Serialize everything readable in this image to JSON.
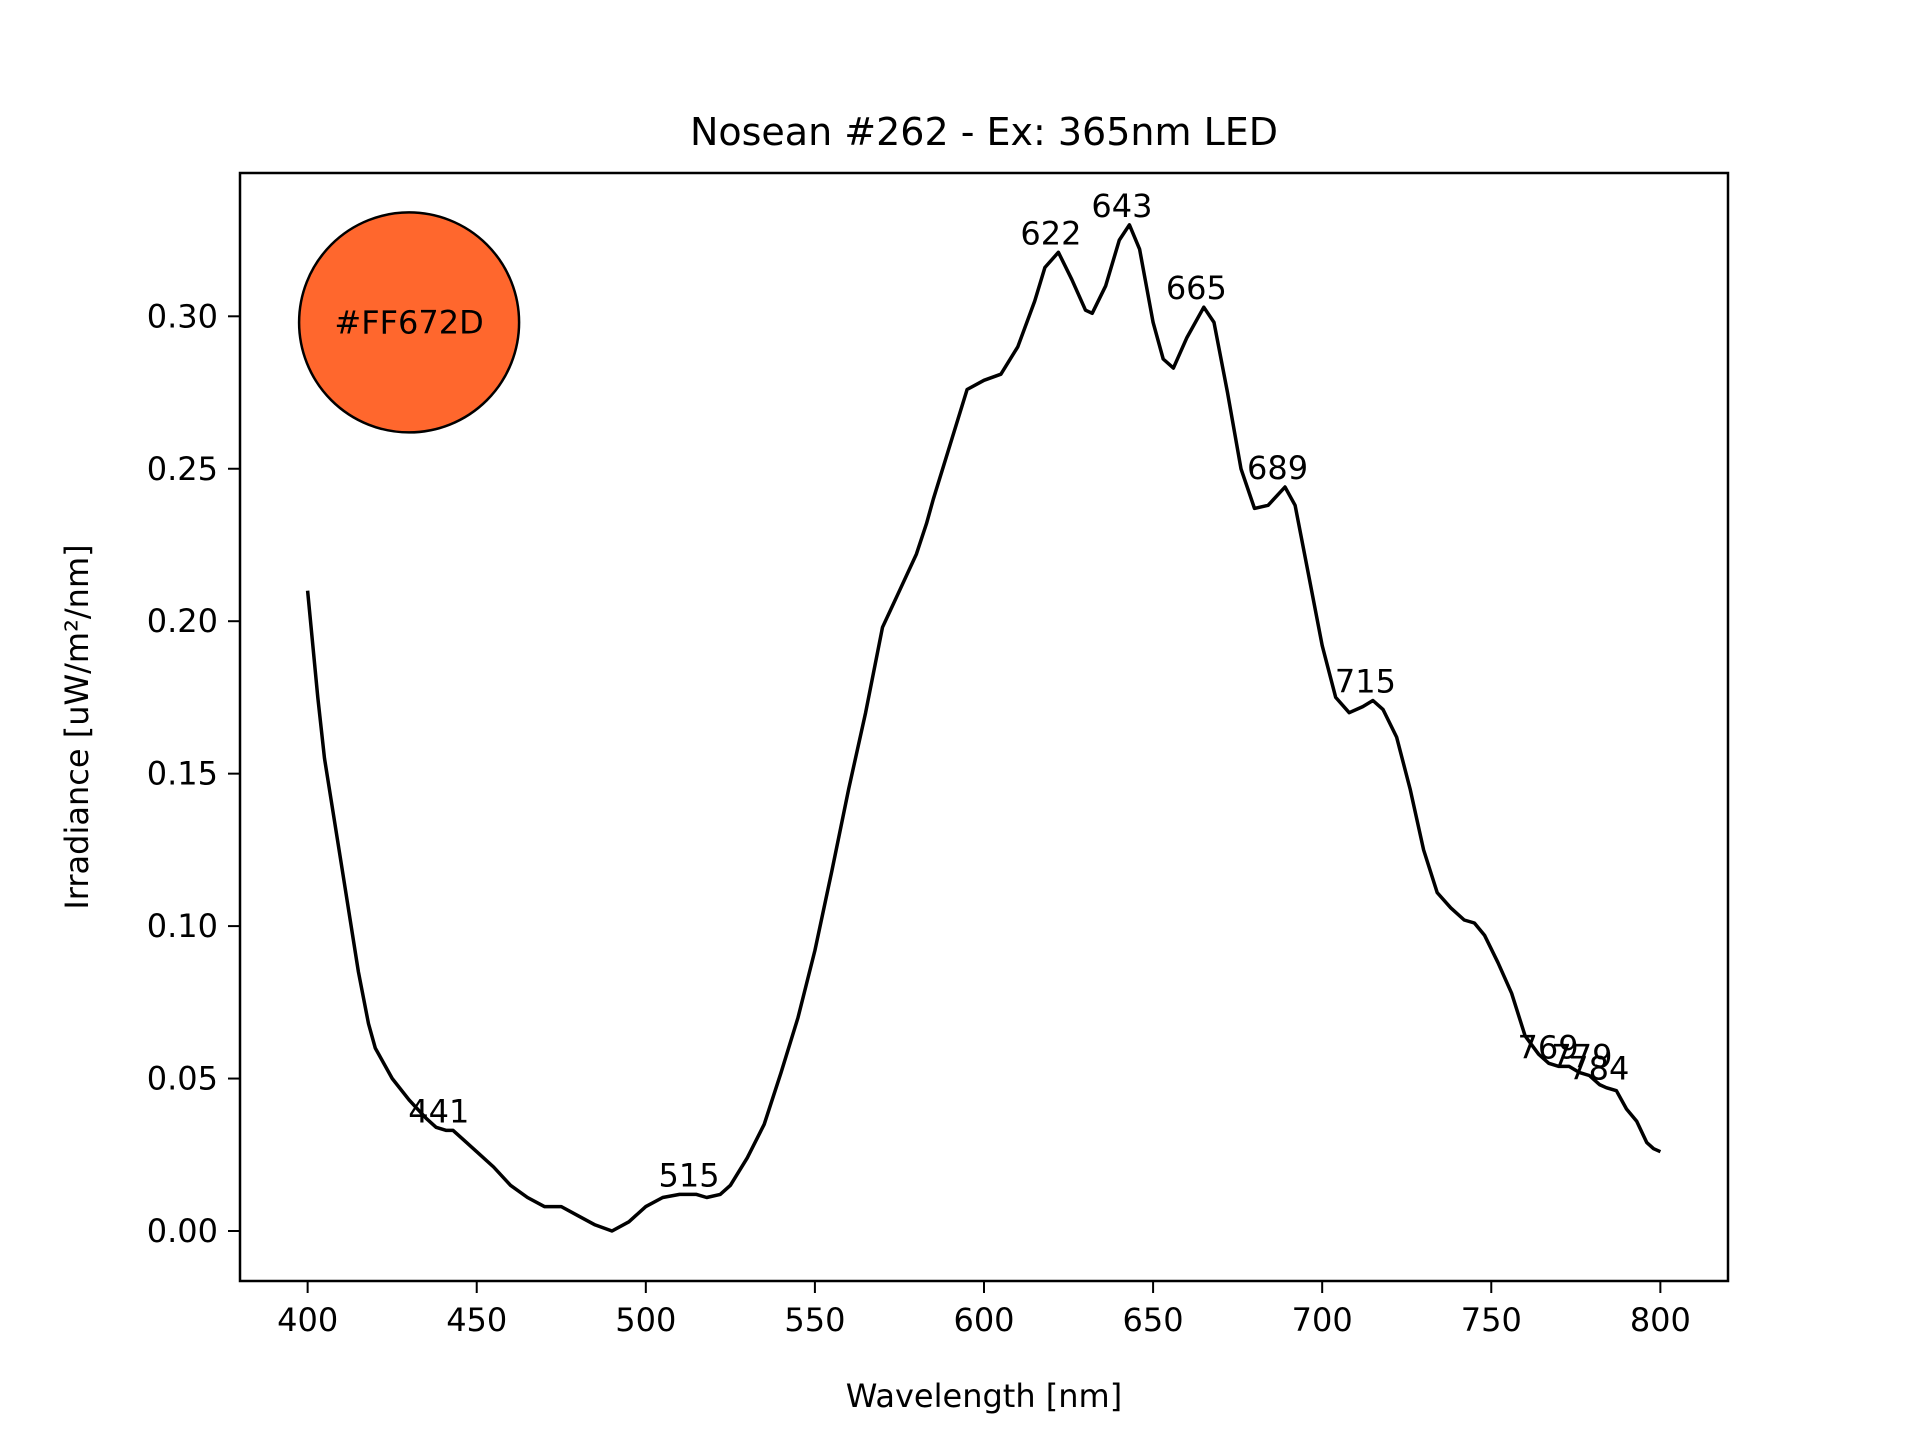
{
  "chart_data": {
    "type": "line",
    "title": "Nosean #262 - Ex: 365nm LED",
    "xlabel": "Wavelength [nm]",
    "ylabel": "Irradiance [uW/m²/nm]",
    "xlim": [
      380,
      820
    ],
    "ylim": [
      -0.0164,
      0.347
    ],
    "grid": false,
    "legend": "none",
    "x_ticks": [
      400,
      450,
      500,
      550,
      600,
      650,
      700,
      750,
      800
    ],
    "x_tick_labels": [
      "400",
      "450",
      "500",
      "550",
      "600",
      "650",
      "700",
      "750",
      "800"
    ],
    "y_ticks": [
      0.0,
      0.05,
      0.1,
      0.15,
      0.2,
      0.25,
      0.3
    ],
    "y_tick_labels": [
      "0.00",
      "0.05",
      "0.10",
      "0.15",
      "0.20",
      "0.25",
      "0.30"
    ],
    "series": [
      {
        "name": "Nosean #262",
        "color": "#000000",
        "x": [
          400,
          403,
          405,
          410,
          415,
          418,
          420,
          425,
          430,
          435,
          438,
          441,
          443,
          447,
          450,
          455,
          460,
          465,
          470,
          475,
          480,
          485,
          490,
          495,
          500,
          505,
          510,
          515,
          518,
          522,
          525,
          530,
          535,
          540,
          545,
          550,
          555,
          560,
          565,
          570,
          575,
          580,
          583,
          585,
          590,
          595,
          600,
          605,
          610,
          615,
          618,
          622,
          626,
          630,
          632,
          636,
          640,
          643,
          646,
          650,
          653,
          656,
          660,
          665,
          668,
          672,
          676,
          680,
          684,
          689,
          692,
          696,
          700,
          704,
          708,
          712,
          715,
          718,
          722,
          726,
          730,
          734,
          738,
          742,
          745,
          748,
          752,
          756,
          760,
          764,
          767,
          770,
          773,
          776,
          779,
          782,
          784,
          787,
          790,
          793,
          796,
          798,
          800
        ],
        "values": [
          0.21,
          0.175,
          0.155,
          0.12,
          0.085,
          0.068,
          0.06,
          0.05,
          0.043,
          0.037,
          0.034,
          0.033,
          0.033,
          0.029,
          0.026,
          0.021,
          0.015,
          0.011,
          0.008,
          0.008,
          0.005,
          0.002,
          0.0,
          0.003,
          0.008,
          0.011,
          0.012,
          0.012,
          0.011,
          0.012,
          0.015,
          0.024,
          0.035,
          0.052,
          0.07,
          0.092,
          0.118,
          0.145,
          0.17,
          0.198,
          0.21,
          0.222,
          0.232,
          0.24,
          0.258,
          0.276,
          0.279,
          0.281,
          0.29,
          0.305,
          0.316,
          0.321,
          0.312,
          0.302,
          0.301,
          0.31,
          0.325,
          0.33,
          0.322,
          0.298,
          0.286,
          0.283,
          0.293,
          0.303,
          0.298,
          0.275,
          0.25,
          0.237,
          0.238,
          0.244,
          0.238,
          0.215,
          0.192,
          0.175,
          0.17,
          0.172,
          0.174,
          0.171,
          0.162,
          0.145,
          0.125,
          0.111,
          0.106,
          0.102,
          0.101,
          0.097,
          0.088,
          0.078,
          0.064,
          0.058,
          0.055,
          0.054,
          0.054,
          0.052,
          0.051,
          0.048,
          0.047,
          0.046,
          0.04,
          0.036,
          0.029,
          0.027,
          0.026
        ]
      }
    ],
    "annotations": [
      {
        "text": "441",
        "x": 441,
        "y": 0.033
      },
      {
        "text": "515",
        "x": 515,
        "y": 0.012
      },
      {
        "text": "622",
        "x": 622,
        "y": 0.321
      },
      {
        "text": "643",
        "x": 643,
        "y": 0.33
      },
      {
        "text": "665",
        "x": 665,
        "y": 0.303
      },
      {
        "text": "689",
        "x": 689,
        "y": 0.244
      },
      {
        "text": "715",
        "x": 715,
        "y": 0.174
      },
      {
        "text": "769",
        "x": 769,
        "y": 0.054
      },
      {
        "text": "779",
        "x": 779,
        "y": 0.051
      },
      {
        "text": "784",
        "x": 784,
        "y": 0.047
      }
    ],
    "color_swatch": {
      "label": "#FF672D",
      "fill": "#FF672D",
      "x": 430,
      "y": 0.298
    }
  }
}
